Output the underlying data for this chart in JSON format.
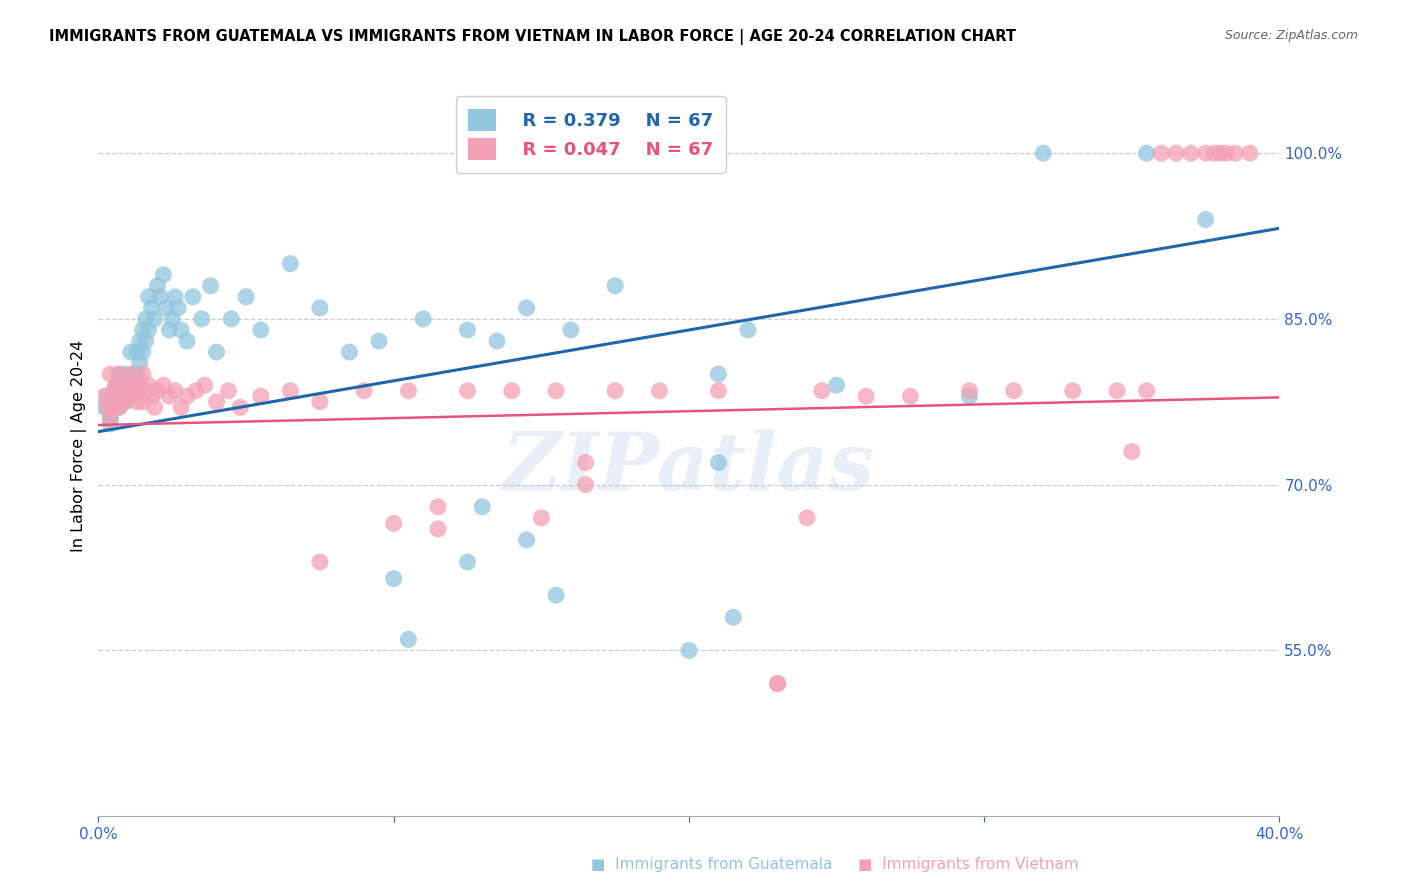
{
  "title": "IMMIGRANTS FROM GUATEMALA VS IMMIGRANTS FROM VIETNAM IN LABOR FORCE | AGE 20-24 CORRELATION CHART",
  "source": "Source: ZipAtlas.com",
  "ylabel": "In Labor Force | Age 20-24",
  "x_min": 0.0,
  "x_max": 0.4,
  "y_min": 0.4,
  "y_max": 1.07,
  "y_ticks": [
    0.55,
    0.7,
    0.85,
    1.0
  ],
  "y_tick_labels": [
    "55.0%",
    "70.0%",
    "85.0%",
    "100.0%"
  ],
  "legend_r1": "R = 0.379",
  "legend_n1": "N = 67",
  "legend_r2": "R = 0.047",
  "legend_n2": "N = 67",
  "color_blue": "#92c5de",
  "color_pink": "#f4a0b5",
  "line_blue": "#2166ac",
  "line_pink": "#e8537a",
  "watermark_text": "ZIPatlas",
  "label_blue": "Immigrants from Guatemala",
  "label_pink": "Immigrants from Vietnam",
  "blue_line_x0": 0.0,
  "blue_line_y0": 0.748,
  "blue_line_x1": 0.4,
  "blue_line_y1": 0.932,
  "pink_line_x0": 0.0,
  "pink_line_y0": 0.754,
  "pink_line_x1": 0.4,
  "pink_line_y1": 0.779,
  "guatemala_x": [
    0.002,
    0.003,
    0.004,
    0.004,
    0.005,
    0.005,
    0.006,
    0.006,
    0.007,
    0.007,
    0.008,
    0.008,
    0.009,
    0.009,
    0.01,
    0.01,
    0.011,
    0.011,
    0.012,
    0.012,
    0.013,
    0.013,
    0.014,
    0.014,
    0.015,
    0.015,
    0.016,
    0.016,
    0.017,
    0.017,
    0.018,
    0.019,
    0.02,
    0.021,
    0.022,
    0.023,
    0.024,
    0.025,
    0.026,
    0.027,
    0.028,
    0.03,
    0.032,
    0.035,
    0.038,
    0.04,
    0.045,
    0.05,
    0.055,
    0.065,
    0.075,
    0.085,
    0.095,
    0.11,
    0.125,
    0.135,
    0.145,
    0.16,
    0.175,
    0.195,
    0.21,
    0.22,
    0.25,
    0.295,
    0.32,
    0.355,
    0.375
  ],
  "guatemala_y": [
    0.77,
    0.78,
    0.76,
    0.755,
    0.78,
    0.77,
    0.79,
    0.775,
    0.8,
    0.77,
    0.79,
    0.78,
    0.8,
    0.775,
    0.79,
    0.78,
    0.82,
    0.79,
    0.8,
    0.795,
    0.82,
    0.8,
    0.83,
    0.81,
    0.84,
    0.82,
    0.85,
    0.83,
    0.87,
    0.84,
    0.86,
    0.85,
    0.88,
    0.87,
    0.89,
    0.86,
    0.84,
    0.85,
    0.87,
    0.86,
    0.84,
    0.83,
    0.87,
    0.85,
    0.88,
    0.82,
    0.85,
    0.87,
    0.84,
    0.9,
    0.86,
    0.82,
    0.83,
    0.85,
    0.84,
    0.83,
    0.86,
    0.84,
    0.88,
    1.0,
    0.8,
    0.84,
    0.79,
    0.78,
    1.0,
    1.0,
    0.94
  ],
  "guatemala_y_outliers": [
    0.615,
    0.56,
    0.6,
    0.65,
    0.68,
    0.72,
    0.58,
    0.63,
    0.55
  ],
  "guatemala_x_outliers": [
    0.1,
    0.105,
    0.155,
    0.145,
    0.13,
    0.21,
    0.215,
    0.125,
    0.2
  ],
  "vietnam_x": [
    0.002,
    0.003,
    0.004,
    0.004,
    0.005,
    0.005,
    0.006,
    0.006,
    0.007,
    0.007,
    0.008,
    0.009,
    0.01,
    0.01,
    0.011,
    0.012,
    0.013,
    0.013,
    0.014,
    0.015,
    0.015,
    0.016,
    0.017,
    0.018,
    0.019,
    0.02,
    0.022,
    0.024,
    0.026,
    0.028,
    0.03,
    0.033,
    0.036,
    0.04,
    0.044,
    0.048,
    0.055,
    0.065,
    0.075,
    0.09,
    0.105,
    0.115,
    0.125,
    0.14,
    0.155,
    0.165,
    0.175,
    0.19,
    0.21,
    0.23,
    0.245,
    0.26,
    0.275,
    0.295,
    0.31,
    0.33,
    0.345,
    0.355,
    0.36,
    0.365,
    0.37,
    0.375,
    0.378,
    0.38,
    0.382,
    0.385,
    0.39
  ],
  "vietnam_y": [
    0.78,
    0.77,
    0.8,
    0.76,
    0.785,
    0.77,
    0.79,
    0.775,
    0.8,
    0.77,
    0.785,
    0.775,
    0.79,
    0.78,
    0.8,
    0.79,
    0.785,
    0.775,
    0.79,
    0.8,
    0.775,
    0.785,
    0.79,
    0.78,
    0.77,
    0.785,
    0.79,
    0.78,
    0.785,
    0.77,
    0.78,
    0.785,
    0.79,
    0.775,
    0.785,
    0.77,
    0.78,
    0.785,
    0.775,
    0.785,
    0.785,
    0.68,
    0.785,
    0.785,
    0.785,
    0.72,
    0.785,
    0.785,
    0.785,
    0.52,
    0.785,
    0.78,
    0.78,
    0.785,
    0.785,
    0.785,
    0.785,
    0.785,
    1.0,
    1.0,
    1.0,
    1.0,
    1.0,
    1.0,
    1.0,
    1.0,
    1.0
  ],
  "vietnam_y_outliers": [
    0.63,
    0.66,
    0.67,
    0.7,
    0.665,
    0.52,
    0.67,
    0.73
  ],
  "vietnam_x_outliers": [
    0.075,
    0.115,
    0.15,
    0.165,
    0.1,
    0.23,
    0.24,
    0.35
  ]
}
